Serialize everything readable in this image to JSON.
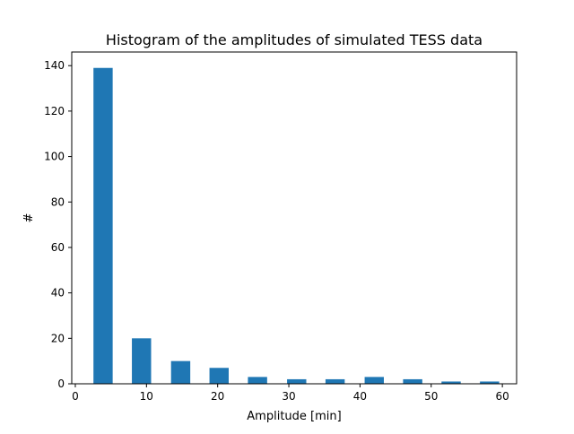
{
  "chart_data": {
    "type": "bar",
    "title": "Histogram of the amplitudes of simulated TESS data",
    "xlabel": "Amplitude [min]",
    "ylabel": "#",
    "xlim": [
      -0.5,
      62.0
    ],
    "ylim": [
      0,
      146
    ],
    "xticks": [
      0,
      10,
      20,
      30,
      40,
      50,
      60
    ],
    "yticks": [
      0,
      20,
      40,
      60,
      80,
      100,
      120,
      140
    ],
    "bin_width": 2.7,
    "bins": [
      {
        "center": 3.9,
        "count": 139
      },
      {
        "center": 9.3,
        "count": 20
      },
      {
        "center": 14.8,
        "count": 10
      },
      {
        "center": 20.2,
        "count": 7
      },
      {
        "center": 25.6,
        "count": 3
      },
      {
        "center": 31.1,
        "count": 2
      },
      {
        "center": 36.5,
        "count": 2
      },
      {
        "center": 42.0,
        "count": 3
      },
      {
        "center": 47.4,
        "count": 2
      },
      {
        "center": 52.8,
        "count": 1
      },
      {
        "center": 58.2,
        "count": 1
      }
    ],
    "bar_color": "#1f77b4",
    "grid": false,
    "legend": "none"
  }
}
